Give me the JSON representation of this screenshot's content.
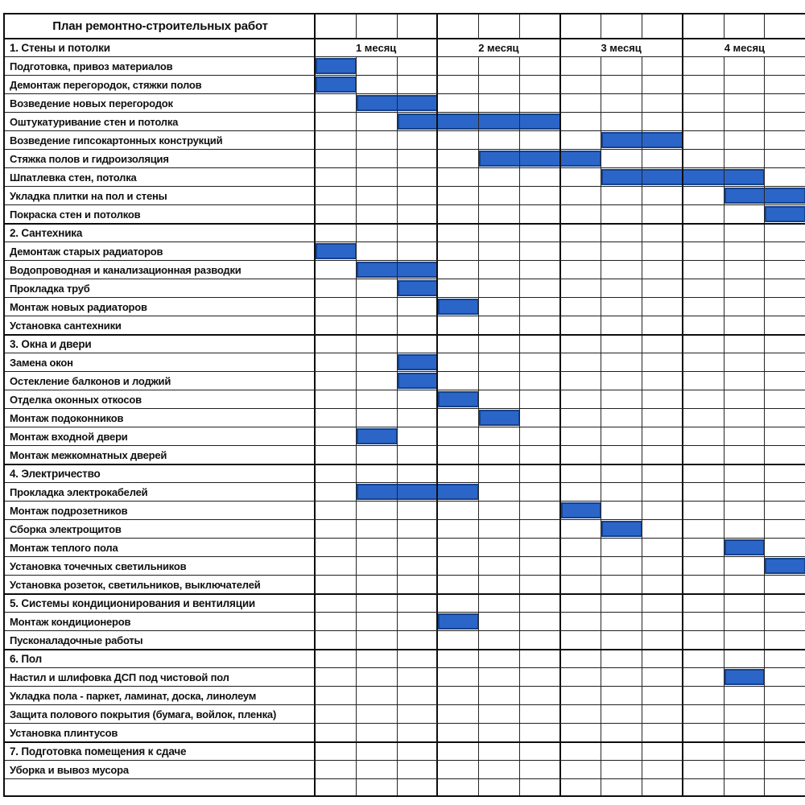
{
  "title": "План ремонтно-строительных работ",
  "colors": {
    "bar_fill": "#2B65C8",
    "bar_border": "#14418C",
    "grid_line": "#262626",
    "bold_line": "#0D0D0D",
    "text": "#101010",
    "background": "#FFFFFF"
  },
  "chart_data": {
    "type": "gantt",
    "title": "План ремонтно-строительных работ",
    "x_axis": {
      "months": [
        "1 месяц",
        "2 месяц",
        "3 месяц",
        "4 месяц"
      ],
      "columns_per_month": 3,
      "total_columns": 12
    },
    "bar_unit": "timeline column (1/3 of a month)",
    "rows": [
      {
        "t": "title"
      },
      {
        "t": "section",
        "label": "1. Стены и потолки",
        "show_months": true
      },
      {
        "t": "task",
        "label": "Подготовка, привоз материалов",
        "start": 1,
        "end": 1
      },
      {
        "t": "task",
        "label": "Демонтаж перегородок, стяжки полов",
        "start": 1,
        "end": 1
      },
      {
        "t": "task",
        "label": "Возведение новых перегородок",
        "start": 2,
        "end": 3
      },
      {
        "t": "task",
        "label": "Оштукатуривание стен и потолка",
        "start": 3,
        "end": 6
      },
      {
        "t": "task",
        "label": "Возведение гипсокартонных конструкций",
        "start": 8,
        "end": 9
      },
      {
        "t": "task",
        "label": "Стяжка полов и гидроизоляция",
        "start": 5,
        "end": 7
      },
      {
        "t": "task",
        "label": "Шпатлевка стен, потолка",
        "start": 8,
        "end": 11
      },
      {
        "t": "task",
        "label": "Укладка плитки на пол и стены",
        "start": 11,
        "end": 12
      },
      {
        "t": "task",
        "label": "Покраска стен и потолков",
        "start": 12,
        "end": 12
      },
      {
        "t": "section",
        "label": "2. Сантехника"
      },
      {
        "t": "task",
        "label": "Демонтаж старых радиаторов",
        "start": 1,
        "end": 1
      },
      {
        "t": "task",
        "label": "Водопроводная и канализационная разводки",
        "start": 2,
        "end": 3
      },
      {
        "t": "task",
        "label": "Прокладка труб",
        "start": 3,
        "end": 3
      },
      {
        "t": "task",
        "label": "Монтаж новых радиаторов",
        "start": 4,
        "end": 4
      },
      {
        "t": "task",
        "label": "Установка сантехники",
        "start": null,
        "end": null
      },
      {
        "t": "section",
        "label": "3. Окна и двери"
      },
      {
        "t": "task",
        "label": "Замена окон",
        "start": 3,
        "end": 3
      },
      {
        "t": "task",
        "label": "Остекление балконов и лоджий",
        "start": 3,
        "end": 3
      },
      {
        "t": "task",
        "label": "Отделка оконных откосов",
        "start": 4,
        "end": 4
      },
      {
        "t": "task",
        "label": "Монтаж подоконников",
        "start": 5,
        "end": 5
      },
      {
        "t": "task",
        "label": "Монтаж входной двери",
        "start": 2,
        "end": 2
      },
      {
        "t": "task",
        "label": "Монтаж межкомнатных дверей",
        "start": null,
        "end": null
      },
      {
        "t": "section",
        "label": "4. Электричество"
      },
      {
        "t": "task",
        "label": "Прокладка электрокабелей",
        "start": 2,
        "end": 4
      },
      {
        "t": "task",
        "label": "Монтаж подрозетников",
        "start": 7,
        "end": 7
      },
      {
        "t": "task",
        "label": "Сборка электрощитов",
        "start": 8,
        "end": 8
      },
      {
        "t": "task",
        "label": "Монтаж теплого пола",
        "start": 11,
        "end": 11
      },
      {
        "t": "task",
        "label": "Установка точечных светильников",
        "start": 12,
        "end": 12
      },
      {
        "t": "task",
        "label": "Установка розеток, светильников, выключателей",
        "start": null,
        "end": null
      },
      {
        "t": "section",
        "label": "5. Системы кондиционирования и вентиляции"
      },
      {
        "t": "task",
        "label": "Монтаж кондиционеров",
        "start": 4,
        "end": 4
      },
      {
        "t": "task",
        "label": "Пусконаладочные работы",
        "start": null,
        "end": null
      },
      {
        "t": "section",
        "label": "6. Пол"
      },
      {
        "t": "task",
        "label": "Настил и шлифовка ДСП под чистовой пол",
        "start": 11,
        "end": 11
      },
      {
        "t": "task",
        "label": "Укладка пола - паркет, ламинат, доска, линолеум",
        "start": null,
        "end": null
      },
      {
        "t": "task",
        "label": "Защита полового покрытия (бумага, войлок, пленка)",
        "start": null,
        "end": null
      },
      {
        "t": "task",
        "label": "Установка плинтусов",
        "start": null,
        "end": null
      },
      {
        "t": "section",
        "label": "7. Подготовка помещения к сдаче"
      },
      {
        "t": "task",
        "label": "Уборка и вывоз мусора",
        "start": null,
        "end": null
      },
      {
        "t": "empty",
        "label": ""
      }
    ]
  }
}
